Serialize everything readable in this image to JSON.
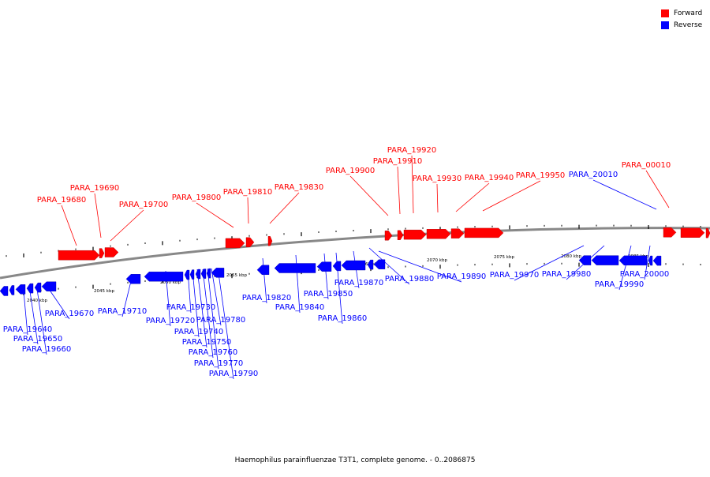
{
  "caption": "Haemophilus parainfluenzae T3T1, complete genome. - 0..2086875",
  "legend": [
    {
      "label": "Forward",
      "color": "#ff0000"
    },
    {
      "label": "Reverse",
      "color": "#0000ff"
    }
  ],
  "scale_labels": [
    "2040 kbp",
    "2045 kbp",
    "2050 kbp",
    "2055 kbp",
    "2060 kbp",
    "2065 kbp",
    "2070 kbp",
    "2075 kbp",
    "2080 kbp",
    "2085 kbp"
  ],
  "forward_genes": [
    "PARA_19680",
    "PARA_19690",
    "PARA_19700",
    "PARA_19800",
    "PARA_19810",
    "PARA_19830",
    "PARA_19900",
    "PARA_19910",
    "PARA_19920",
    "PARA_19930",
    "PARA_19940",
    "PARA_19950",
    "PARA_00010"
  ],
  "reverse_genes": [
    "PARA_19640",
    "PARA_19650",
    "PARA_19660",
    "PARA_19670",
    "PARA_19710",
    "PARA_19720",
    "PARA_19730",
    "PARA_19740",
    "PARA_19750",
    "PARA_19760",
    "PARA_19770",
    "PARA_19780",
    "PARA_19790",
    "PARA_19820",
    "PARA_19840",
    "PARA_19850",
    "PARA_19860",
    "PARA_19870",
    "PARA_19880",
    "PARA_19890",
    "PARA_19970",
    "PARA_19980",
    "PARA_19990",
    "PARA_20000",
    "PARA_20010"
  ]
}
